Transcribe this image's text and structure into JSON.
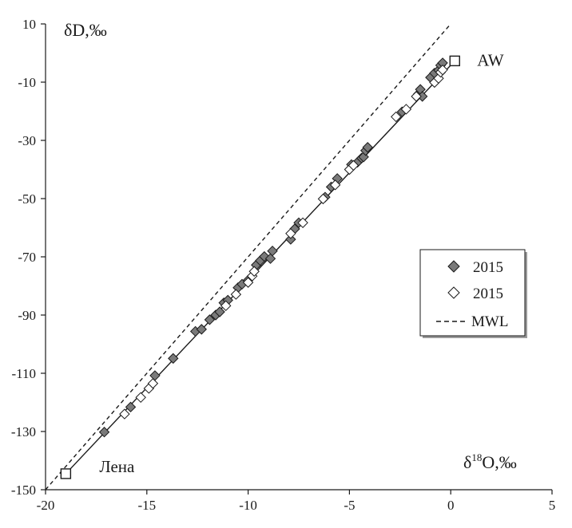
{
  "chart_data": {
    "type": "scatter",
    "xlabel_base": "δ",
    "xlabel_sup": "18",
    "xlabel_rest": "O,‰",
    "ylabel": "δD,‰",
    "xlim": [
      -20,
      5
    ],
    "ylim": [
      -150,
      10
    ],
    "x_ticks": [
      -20,
      -15,
      -10,
      -5,
      0,
      5
    ],
    "y_ticks": [
      10,
      -10,
      -30,
      -50,
      -70,
      -90,
      -110,
      -130,
      -150
    ],
    "legend": {
      "placement": "right",
      "entries": [
        {
          "label": "2015",
          "marker": "diamond-filled"
        },
        {
          "label": "2015",
          "marker": "diamond-open"
        },
        {
          "label": "MWL",
          "marker": "dashed-line"
        }
      ]
    },
    "endmembers": [
      {
        "label": "AW",
        "x": 0.2,
        "y": -2.7
      },
      {
        "label": "Лена",
        "x": -19.0,
        "y": -144.5
      }
    ],
    "mixing_line": {
      "from": [
        -19.0,
        -144.5
      ],
      "to": [
        0.2,
        -2.7
      ]
    },
    "mwl": {
      "from": [
        -20,
        -150
      ],
      "to": [
        0,
        10
      ]
    },
    "series": [
      {
        "name": "2015",
        "marker": "diamond-filled",
        "color": "#7a7a7a",
        "points": [
          [
            -17.1,
            -130.2
          ],
          [
            -15.8,
            -121.6
          ],
          [
            -14.6,
            -110.8
          ],
          [
            -13.7,
            -104.9
          ],
          [
            -12.6,
            -95.6
          ],
          [
            -12.3,
            -94.9
          ],
          [
            -11.9,
            -91.6
          ],
          [
            -11.6,
            -90.0
          ],
          [
            -11.4,
            -88.9
          ],
          [
            -11.2,
            -85.8
          ],
          [
            -11.0,
            -84.9
          ],
          [
            -10.5,
            -80.6
          ],
          [
            -10.3,
            -79.4
          ],
          [
            -10.0,
            -78.0
          ],
          [
            -9.6,
            -72.8
          ],
          [
            -9.4,
            -71.3
          ],
          [
            -9.2,
            -69.9
          ],
          [
            -8.9,
            -70.6
          ],
          [
            -8.8,
            -68.0
          ],
          [
            -7.9,
            -64.0
          ],
          [
            -7.7,
            -60.4
          ],
          [
            -7.5,
            -58.3
          ],
          [
            -6.2,
            -49.5
          ],
          [
            -5.9,
            -46.0
          ],
          [
            -5.6,
            -43.1
          ],
          [
            -4.9,
            -38.3
          ],
          [
            -4.6,
            -37.5
          ],
          [
            -4.4,
            -36.1
          ],
          [
            -4.3,
            -35.7
          ],
          [
            -4.2,
            -33.5
          ],
          [
            -4.1,
            -32.4
          ],
          [
            -2.4,
            -20.2
          ],
          [
            -1.6,
            -14.1
          ],
          [
            -1.5,
            -12.5
          ],
          [
            -1.4,
            -14.9
          ],
          [
            -1.0,
            -8.4
          ],
          [
            -0.8,
            -6.9
          ],
          [
            -0.6,
            -5.9
          ],
          [
            -0.5,
            -4.2
          ],
          [
            -0.4,
            -3.4
          ]
        ]
      },
      {
        "name": "2015",
        "marker": "diamond-open",
        "color": "#ffffff",
        "points": [
          [
            -16.1,
            -124.0
          ],
          [
            -15.3,
            -118.3
          ],
          [
            -14.9,
            -115.2
          ],
          [
            -14.7,
            -113.5
          ],
          [
            -11.1,
            -86.8
          ],
          [
            -10.6,
            -82.9
          ],
          [
            -10.0,
            -78.8
          ],
          [
            -9.8,
            -76.6
          ],
          [
            -9.7,
            -75.0
          ],
          [
            -7.9,
            -62.0
          ],
          [
            -7.3,
            -58.3
          ],
          [
            -6.3,
            -50.1
          ],
          [
            -5.7,
            -45.3
          ],
          [
            -5.0,
            -40.0
          ],
          [
            -4.8,
            -38.6
          ],
          [
            -2.7,
            -21.9
          ],
          [
            -2.2,
            -19.3
          ],
          [
            -1.7,
            -14.9
          ],
          [
            -0.8,
            -10.1
          ],
          [
            -0.6,
            -8.7
          ],
          [
            -0.5,
            -6.6
          ],
          [
            -0.4,
            -5.8
          ]
        ]
      }
    ]
  }
}
